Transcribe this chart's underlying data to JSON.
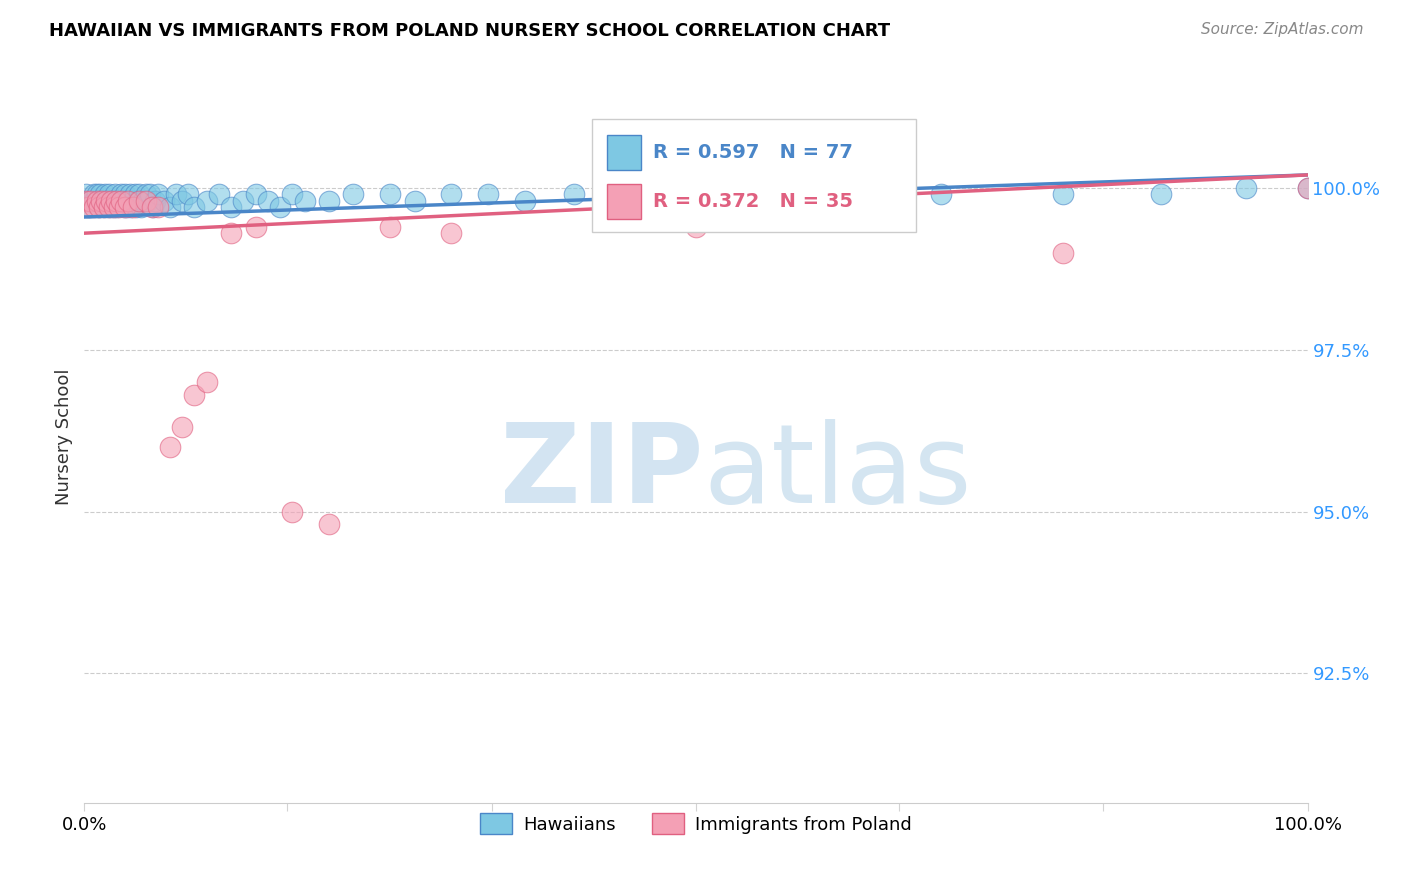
{
  "title": "HAWAIIAN VS IMMIGRANTS FROM POLAND NURSERY SCHOOL CORRELATION CHART",
  "source": "Source: ZipAtlas.com",
  "ylabel": "Nursery School",
  "ytick_labels": [
    "100.0%",
    "97.5%",
    "95.0%",
    "92.5%"
  ],
  "ytick_values": [
    1.0,
    0.975,
    0.95,
    0.925
  ],
  "xlim": [
    0.0,
    1.0
  ],
  "ylim": [
    0.905,
    1.018
  ],
  "legend_hawaiians": "Hawaiians",
  "legend_poland": "Immigrants from Poland",
  "r_hawaiians": 0.597,
  "n_hawaiians": 77,
  "r_poland": 0.372,
  "n_poland": 35,
  "color_hawaiians": "#7ec8e3",
  "color_poland": "#f4a0b5",
  "color_line_hawaiians": "#4a86c8",
  "color_line_poland": "#e06080",
  "hawaiians_x": [
    0.001,
    0.003,
    0.005,
    0.008,
    0.008,
    0.01,
    0.011,
    0.012,
    0.013,
    0.014,
    0.015,
    0.016,
    0.017,
    0.018,
    0.019,
    0.02,
    0.021,
    0.022,
    0.023,
    0.024,
    0.025,
    0.026,
    0.027,
    0.028,
    0.03,
    0.031,
    0.032,
    0.033,
    0.034,
    0.035,
    0.037,
    0.038,
    0.04,
    0.041,
    0.042,
    0.044,
    0.045,
    0.046,
    0.048,
    0.05,
    0.052,
    0.054,
    0.056,
    0.058,
    0.06,
    0.065,
    0.07,
    0.075,
    0.08,
    0.085,
    0.09,
    0.1,
    0.11,
    0.12,
    0.13,
    0.14,
    0.15,
    0.16,
    0.17,
    0.18,
    0.2,
    0.22,
    0.25,
    0.27,
    0.3,
    0.33,
    0.36,
    0.4,
    0.45,
    0.5,
    0.55,
    0.6,
    0.7,
    0.8,
    0.88,
    0.95,
    1.0
  ],
  "hawaiians_y": [
    0.999,
    0.998,
    0.997,
    0.999,
    0.998,
    0.999,
    0.998,
    0.997,
    0.999,
    0.998,
    0.998,
    0.997,
    0.999,
    0.998,
    0.997,
    0.999,
    0.998,
    0.997,
    0.998,
    0.997,
    0.999,
    0.998,
    0.997,
    0.998,
    0.999,
    0.998,
    0.997,
    0.999,
    0.998,
    0.997,
    0.999,
    0.997,
    0.998,
    0.999,
    0.997,
    0.998,
    0.999,
    0.997,
    0.998,
    0.999,
    0.998,
    0.999,
    0.997,
    0.998,
    0.999,
    0.998,
    0.997,
    0.999,
    0.998,
    0.999,
    0.997,
    0.998,
    0.999,
    0.997,
    0.998,
    0.999,
    0.998,
    0.997,
    0.999,
    0.998,
    0.998,
    0.999,
    0.999,
    0.998,
    0.999,
    0.999,
    0.998,
    0.999,
    0.998,
    0.999,
    0.999,
    0.999,
    0.999,
    0.999,
    0.999,
    1.0,
    1.0
  ],
  "poland_x": [
    0.001,
    0.003,
    0.005,
    0.008,
    0.01,
    0.012,
    0.014,
    0.016,
    0.018,
    0.02,
    0.022,
    0.024,
    0.026,
    0.028,
    0.03,
    0.033,
    0.036,
    0.04,
    0.045,
    0.05,
    0.055,
    0.06,
    0.07,
    0.08,
    0.09,
    0.1,
    0.12,
    0.14,
    0.17,
    0.2,
    0.25,
    0.3,
    0.5,
    0.8,
    1.0
  ],
  "poland_y": [
    0.998,
    0.997,
    0.998,
    0.997,
    0.998,
    0.997,
    0.998,
    0.997,
    0.998,
    0.997,
    0.998,
    0.997,
    0.998,
    0.997,
    0.998,
    0.997,
    0.998,
    0.997,
    0.998,
    0.998,
    0.997,
    0.997,
    0.96,
    0.963,
    0.968,
    0.97,
    0.993,
    0.994,
    0.95,
    0.948,
    0.994,
    0.993,
    0.994,
    0.99,
    1.0
  ],
  "line_h_x0": 0.0,
  "line_h_x1": 1.0,
  "line_h_y0": 0.9955,
  "line_h_y1": 1.002,
  "line_p_x0": 0.0,
  "line_p_x1": 1.0,
  "line_p_y0": 0.993,
  "line_p_y1": 1.002
}
